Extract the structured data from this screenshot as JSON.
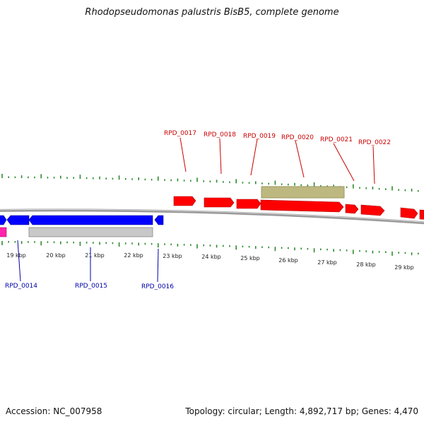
{
  "title": "Rhodopseudomonas palustris BisB5, complete genome",
  "footer": {
    "accession_label": "Accession: NC_007958",
    "summary": "Topology: circular; Length: 4,892,717 bp; Genes: 4,470"
  },
  "colors": {
    "forward_gene": "#ff0000",
    "reverse_gene": "#0000ff",
    "forward_label": "#cc0000",
    "reverse_label": "#0000aa",
    "gc_ticks": "#2e8b2e",
    "backbone": "#777777",
    "pink_feature": "#ff22aa",
    "grey_feature": "#c8c8c8",
    "olive_feature": "#bdb880"
  },
  "scale_ticks": [
    "19 kbp",
    "20 kbp",
    "21 kbp",
    "22 kbp",
    "23 kbp",
    "24 kbp",
    "25 kbp",
    "26 kbp",
    "27 kbp",
    "28 kbp",
    "29 kbp"
  ],
  "top_genes": [
    "RPD_0017",
    "RPD_0018",
    "RPD_0019",
    "RPD_0020",
    "RPD_0021",
    "RPD_0022"
  ],
  "bottom_genes": [
    "RPD_0014",
    "RPD_0015",
    "RPD_0016"
  ]
}
